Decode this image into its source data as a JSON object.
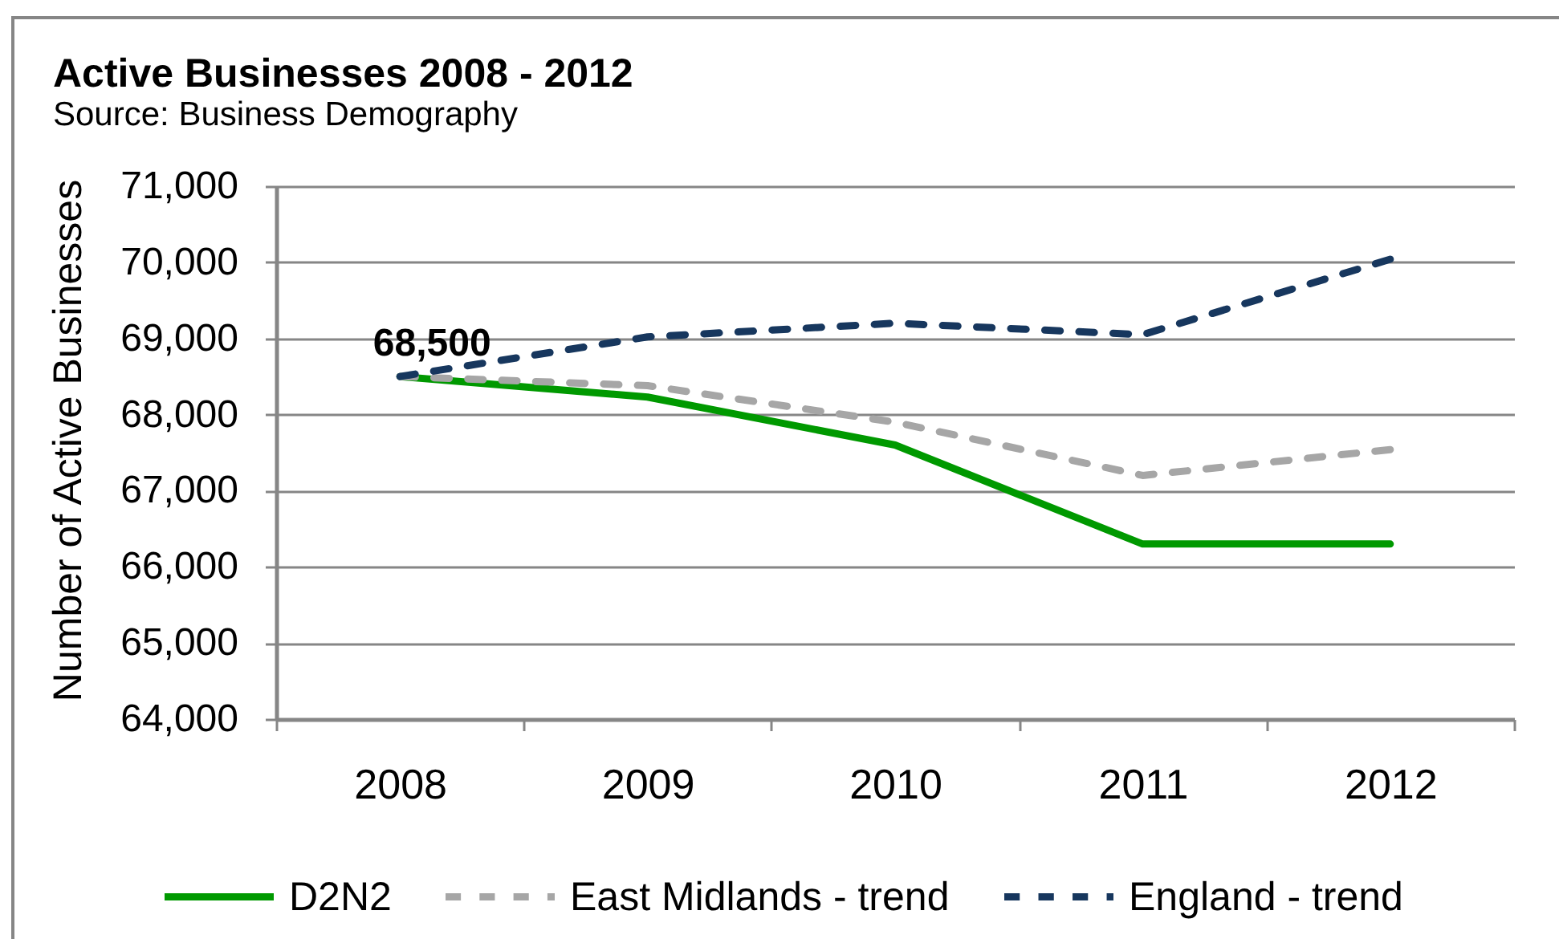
{
  "chart_data": {
    "type": "line",
    "title": "Active Businesses 2008 - 2012",
    "subtitle": "Source: Business Demography",
    "ylabel": "Number of Active Businesses",
    "categories": [
      "2008",
      "2009",
      "2010",
      "2011",
      "2012"
    ],
    "series": [
      {
        "name": "D2N2",
        "color": "#009900",
        "line_style": "solid",
        "values": [
          68500,
          68230,
          67600,
          66300,
          66300
        ]
      },
      {
        "name": "East Midlands - trend",
        "color": "#a6a6a6",
        "line_style": "dashed",
        "values": [
          68500,
          68380,
          67900,
          67200,
          67540
        ]
      },
      {
        "name": "England - trend",
        "color": "#17375e",
        "line_style": "dashed",
        "values": [
          68500,
          69020,
          69200,
          69050,
          70040
        ]
      }
    ],
    "ylim": [
      64000,
      71000
    ],
    "yticks": [
      {
        "value": 64000,
        "label": "64,000"
      },
      {
        "value": 65000,
        "label": "65,000"
      },
      {
        "value": 66000,
        "label": "66,000"
      },
      {
        "value": 67000,
        "label": "67,000"
      },
      {
        "value": 68000,
        "label": "68,000"
      },
      {
        "value": 69000,
        "label": "69,000"
      },
      {
        "value": 70000,
        "label": "70,000"
      },
      {
        "value": 71000,
        "label": "71,000"
      }
    ],
    "grid": "y",
    "legend": "bottom",
    "annotations": [
      {
        "text": "68,500",
        "x": "2008",
        "y": 68500
      }
    ]
  }
}
